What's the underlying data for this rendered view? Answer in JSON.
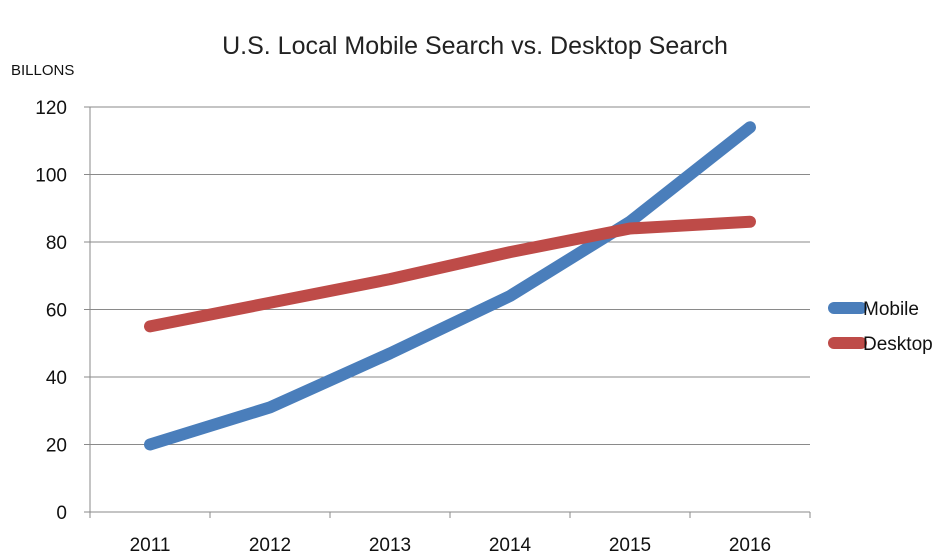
{
  "chart_data": {
    "type": "line",
    "title": "U.S. Local Mobile Search vs. Desktop Search",
    "ylabel": "BILLONS",
    "xlabel": "",
    "categories": [
      "2011",
      "2012",
      "2013",
      "2014",
      "2015",
      "2016"
    ],
    "ylim": [
      0,
      120
    ],
    "yticks": [
      0,
      20,
      40,
      60,
      80,
      100,
      120
    ],
    "grid": true,
    "legend_position": "right",
    "series": [
      {
        "name": "Mobile",
        "color": "#4a7ebb",
        "values": [
          20,
          31,
          47,
          64,
          86,
          114
        ]
      },
      {
        "name": "Desktop",
        "color": "#be4b48",
        "values": [
          55,
          62,
          69,
          77,
          84,
          86
        ]
      }
    ]
  }
}
